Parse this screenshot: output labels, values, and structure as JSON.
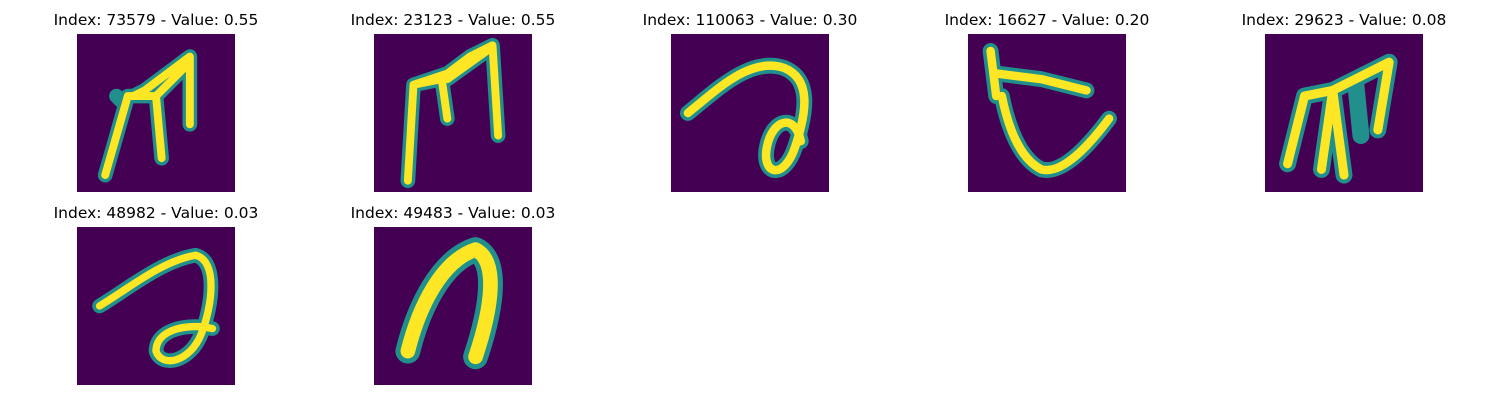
{
  "colors": {
    "background": "#440154",
    "stroke_low": "#21908d",
    "stroke_mid": "#5ec962",
    "stroke_high": "#fde725"
  },
  "grid": [
    {
      "title": "Index: 73579 - Value: 0.55",
      "glyph": "m-tall-left"
    },
    {
      "title": "Index: 23123 - Value: 0.55",
      "glyph": "m-tall-right"
    },
    {
      "title": "Index: 110063 - Value: 0.30",
      "glyph": "loop-curve"
    },
    {
      "title": "Index: 16627 - Value: 0.20",
      "glyph": "cup-shape"
    },
    {
      "title": "Index: 29623 - Value: 0.08",
      "glyph": "m-slanted"
    },
    {
      "title": "Index: 48982 - Value: 0.03",
      "glyph": "loop-curve-wide"
    },
    {
      "title": "Index: 49483 - Value: 0.03",
      "glyph": "arch-shape"
    }
  ]
}
